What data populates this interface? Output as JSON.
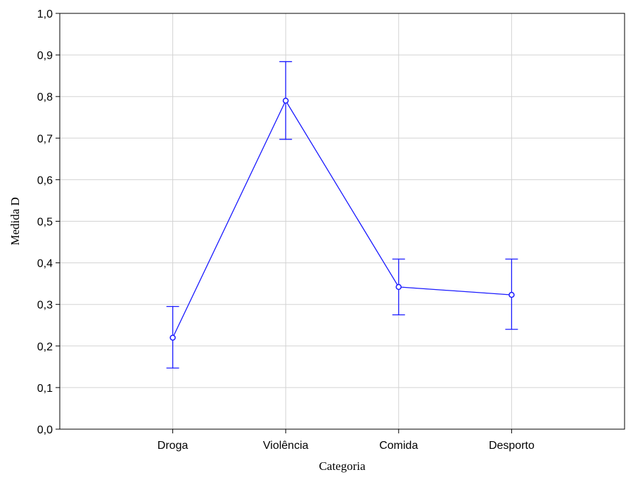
{
  "chart_data": {
    "type": "line",
    "xlabel": "Categoria",
    "ylabel": "Medida D",
    "categories": [
      "Droga",
      "Violência",
      "Comida",
      "Desporto"
    ],
    "series": [
      {
        "values": [
          0.22,
          0.79,
          0.342,
          0.323
        ],
        "error_low": [
          0.147,
          0.697,
          0.275,
          0.24
        ],
        "error_high": [
          0.295,
          0.884,
          0.409,
          0.409
        ],
        "color": "#1a1aff"
      }
    ],
    "ylim": [
      0.0,
      1.0
    ],
    "yticks": [
      "0,0",
      "0,1",
      "0,2",
      "0,3",
      "0,4",
      "0,5",
      "0,6",
      "0,7",
      "0,8",
      "0,9",
      "1,0"
    ],
    "grid": true,
    "grid_color": "#d3d3d3",
    "marker": "open-circle"
  }
}
